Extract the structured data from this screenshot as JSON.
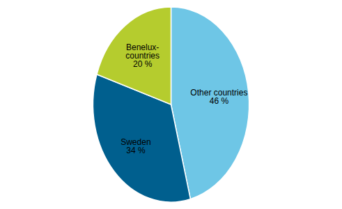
{
  "chart_data": {
    "type": "pie",
    "categories": [
      "Other countries",
      "Sweden",
      "Benelux-\ncountries"
    ],
    "values": [
      46,
      34,
      20
    ],
    "value_labels": [
      "46 %",
      "34 %",
      "20 %"
    ],
    "colors": [
      "#6ec6e6",
      "#005f8e",
      "#b5cc2e"
    ],
    "data_labels": true
  }
}
